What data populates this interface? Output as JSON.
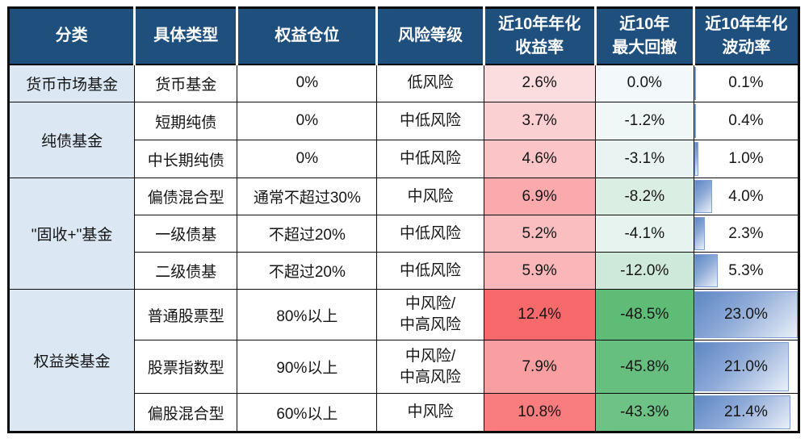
{
  "chart_data": {
    "type": "table",
    "columns": [
      {
        "label_lines": [
          "分类"
        ]
      },
      {
        "label_lines": [
          "具体类型"
        ]
      },
      {
        "label_lines": [
          "权益仓位"
        ]
      },
      {
        "label_lines": [
          "风险等级"
        ]
      },
      {
        "label_lines": [
          "近10年年化",
          "收益率"
        ]
      },
      {
        "label_lines": [
          "近10年",
          "最大回撤"
        ]
      },
      {
        "label_lines": [
          "近10年年化",
          "波动率"
        ]
      }
    ],
    "groups": [
      {
        "category": "货币市场基金",
        "rows": [
          {
            "type": "货币基金",
            "equity_position": "0%",
            "risk_lines": [
              "低风险"
            ],
            "annual_return_label": "2.6%",
            "annual_return_value": 2.6,
            "max_drawdown_label": "0.0%",
            "max_drawdown_value": 0.0,
            "volatility_label": "0.1%",
            "volatility_value": 0.1
          }
        ]
      },
      {
        "category": "纯债基金",
        "rows": [
          {
            "type": "短期纯债",
            "equity_position": "0%",
            "risk_lines": [
              "中低风险"
            ],
            "annual_return_label": "3.7%",
            "annual_return_value": 3.7,
            "max_drawdown_label": "-1.2%",
            "max_drawdown_value": -1.2,
            "volatility_label": "0.4%",
            "volatility_value": 0.4
          },
          {
            "type": "中长期纯债",
            "equity_position": "0%",
            "risk_lines": [
              "中低风险"
            ],
            "annual_return_label": "4.6%",
            "annual_return_value": 4.6,
            "max_drawdown_label": "-3.1%",
            "max_drawdown_value": -3.1,
            "volatility_label": "1.0%",
            "volatility_value": 1.0
          }
        ]
      },
      {
        "category": "\"固收+\"基金",
        "rows": [
          {
            "type": "偏债混合型",
            "equity_position": "通常不超过30%",
            "risk_lines": [
              "中风险"
            ],
            "annual_return_label": "6.9%",
            "annual_return_value": 6.9,
            "max_drawdown_label": "-8.2%",
            "max_drawdown_value": -8.2,
            "volatility_label": "4.0%",
            "volatility_value": 4.0
          },
          {
            "type": "一级债基",
            "equity_position": "不超过20%",
            "risk_lines": [
              "中低风险"
            ],
            "annual_return_label": "5.2%",
            "annual_return_value": 5.2,
            "max_drawdown_label": "-4.1%",
            "max_drawdown_value": -4.1,
            "volatility_label": "2.3%",
            "volatility_value": 2.3
          },
          {
            "type": "二级债基",
            "equity_position": "不超过20%",
            "risk_lines": [
              "中低风险"
            ],
            "annual_return_label": "5.9%",
            "annual_return_value": 5.9,
            "max_drawdown_label": "-12.0%",
            "max_drawdown_value": -12.0,
            "volatility_label": "5.3%",
            "volatility_value": 5.3
          }
        ]
      },
      {
        "category": "权益类基金",
        "rows": [
          {
            "type": "普通股票型",
            "equity_position": "80%以上",
            "risk_lines": [
              "中风险/",
              "中高风险"
            ],
            "annual_return_label": "12.4%",
            "annual_return_value": 12.4,
            "max_drawdown_label": "-48.5%",
            "max_drawdown_value": -48.5,
            "volatility_label": "23.0%",
            "volatility_value": 23.0
          },
          {
            "type": "股票指数型",
            "equity_position": "90%以上",
            "risk_lines": [
              "中风险/",
              "中高风险"
            ],
            "annual_return_label": "7.9%",
            "annual_return_value": 7.9,
            "max_drawdown_label": "-45.8%",
            "max_drawdown_value": -45.8,
            "volatility_label": "21.0%",
            "volatility_value": 21.0
          },
          {
            "type": "偏股混合型",
            "equity_position": "60%以上",
            "risk_lines": [
              "中风险"
            ],
            "annual_return_label": "10.8%",
            "annual_return_value": 10.8,
            "max_drawdown_label": "-43.3%",
            "max_drawdown_value": -43.3,
            "volatility_label": "21.4%",
            "volatility_value": 21.4
          }
        ]
      }
    ],
    "conditional_formatting": {
      "annual_return_scale": {
        "base_color": "#FCFCFF",
        "end_color": "#F8696B",
        "min": 0,
        "max": 12.4
      },
      "max_drawdown_scale": {
        "base_color": "#F3F8FA",
        "end_color": "#5EBC77",
        "max_abs": 48.5
      },
      "volatility_databar": {
        "max": 23.0,
        "bar_border_color": "#7EA0D0",
        "bar_dark_color": "#5E87C3",
        "bar_light_color": "#E9EFF8"
      }
    },
    "header_bg_color": "#1F4F7D",
    "category_bg_color": "#DBE8F4"
  }
}
